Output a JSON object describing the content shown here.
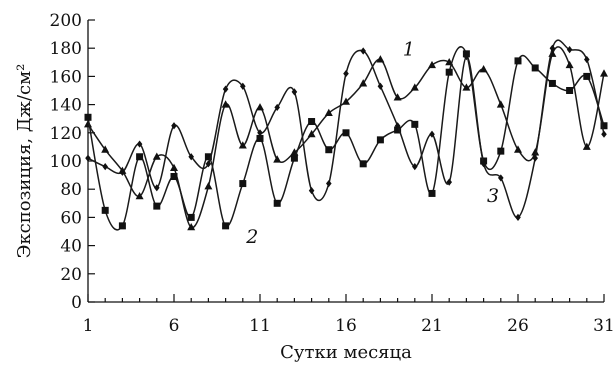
{
  "chart_data": {
    "type": "line",
    "xlabel": "Сутки месяца",
    "ylabel": "Экспозиция, Дж/см²",
    "xlim": [
      1,
      31
    ],
    "ylim": [
      0,
      200
    ],
    "x_ticks": [
      "1",
      "6",
      "11",
      "16",
      "21",
      "26",
      "31"
    ],
    "y_ticks": [
      "0",
      "20",
      "40",
      "60",
      "80",
      "100",
      "120",
      "140",
      "160",
      "180",
      "200"
    ],
    "grid": false,
    "legend": "none",
    "x": [
      1,
      2,
      3,
      4,
      5,
      6,
      7,
      8,
      9,
      10,
      11,
      12,
      13,
      14,
      15,
      16,
      17,
      18,
      19,
      20,
      21,
      22,
      23,
      24,
      25,
      26,
      27,
      28,
      29,
      30,
      31
    ],
    "series": [
      {
        "name": "1",
        "marker": "triangle",
        "values": [
          126,
          108,
          93,
          75,
          103,
          95,
          53,
          82,
          140,
          111,
          138,
          101,
          106,
          119,
          134,
          142,
          155,
          172,
          145,
          152,
          168,
          170,
          152,
          165,
          140,
          108,
          106,
          176,
          168,
          110,
          162
        ]
      },
      {
        "name": "2",
        "marker": "square",
        "values": [
          131,
          65,
          54,
          103,
          68,
          89,
          60,
          103,
          54,
          84,
          116,
          70,
          102,
          128,
          108,
          120,
          98,
          115,
          122,
          126,
          77,
          163,
          176,
          100,
          107,
          171,
          166,
          155,
          150,
          160,
          125
        ]
      },
      {
        "name": "3",
        "marker": "diamond",
        "values": [
          102,
          96,
          92,
          112,
          81,
          125,
          103,
          98,
          151,
          153,
          120,
          138,
          149,
          79,
          84,
          162,
          178,
          153,
          125,
          96,
          119,
          85,
          174,
          98,
          88,
          60,
          102,
          180,
          179,
          172,
          119
        ]
      }
    ]
  }
}
